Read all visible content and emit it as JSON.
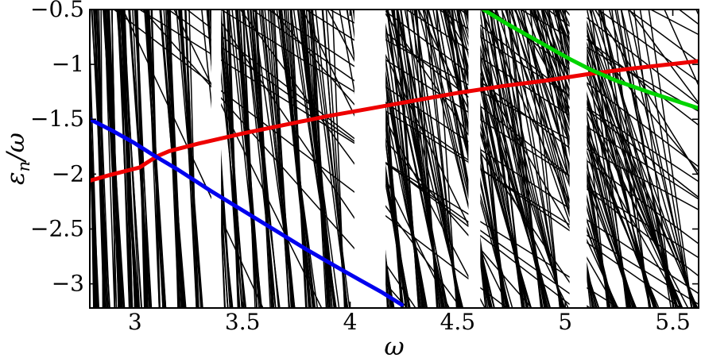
{
  "figure": {
    "background_color": "#ffffff",
    "frame_color": "#000000"
  },
  "chart_data": {
    "type": "line",
    "title": "",
    "xlabel": "ω",
    "ylabel": "εn/ω",
    "ylabel_parts": {
      "base": "ε",
      "sub": "n",
      "rest": "/ω"
    },
    "xlim": [
      2.79,
      5.62
    ],
    "ylim": [
      -3.22,
      -0.5
    ],
    "x_ticks": [
      3,
      3.5,
      4,
      4.5,
      5,
      5.5
    ],
    "x_tick_labels": [
      "3",
      "3.5",
      "4",
      "4.5",
      "5",
      "5.5"
    ],
    "y_ticks": [
      -0.5,
      -1,
      -1.5,
      -2,
      -2.5,
      -3
    ],
    "y_tick_labels": [
      "−0.5",
      "−1",
      "−1.5",
      "−2",
      "−2.5",
      "−3"
    ],
    "grid": false,
    "legend": "none",
    "series": [
      {
        "name": "red-branch",
        "color": "#ee0000",
        "width": 5,
        "points": [
          [
            2.79,
            -2.06
          ],
          [
            2.88,
            -2.01
          ],
          [
            2.96,
            -1.97
          ],
          [
            3.02,
            -1.94
          ],
          [
            3.06,
            -1.89
          ],
          [
            3.1,
            -1.84
          ],
          [
            3.16,
            -1.79
          ],
          [
            3.3,
            -1.72
          ],
          [
            3.5,
            -1.63
          ],
          [
            3.7,
            -1.55
          ],
          [
            3.9,
            -1.47
          ],
          [
            4.1,
            -1.4
          ],
          [
            4.3,
            -1.33
          ],
          [
            4.5,
            -1.26
          ],
          [
            4.7,
            -1.2
          ],
          [
            4.9,
            -1.15
          ],
          [
            5.1,
            -1.09
          ],
          [
            5.3,
            -1.04
          ],
          [
            5.62,
            -0.97
          ]
        ]
      },
      {
        "name": "blue-branch",
        "color": "#0000ee",
        "width": 5,
        "points": [
          [
            2.79,
            -1.5
          ],
          [
            2.9,
            -1.61
          ],
          [
            3.0,
            -1.72
          ],
          [
            3.08,
            -1.82
          ],
          [
            3.2,
            -1.96
          ],
          [
            3.35,
            -2.15
          ],
          [
            3.5,
            -2.33
          ],
          [
            3.65,
            -2.51
          ],
          [
            3.8,
            -2.69
          ],
          [
            3.95,
            -2.86
          ],
          [
            4.05,
            -2.97
          ],
          [
            4.15,
            -3.08
          ],
          [
            4.24,
            -3.19
          ]
        ]
      },
      {
        "name": "green-branch",
        "color": "#00d400",
        "width": 5,
        "points": [
          [
            4.62,
            -0.5
          ],
          [
            4.72,
            -0.62
          ],
          [
            4.82,
            -0.73
          ],
          [
            4.92,
            -0.84
          ],
          [
            5.02,
            -0.95
          ],
          [
            5.12,
            -1.05
          ],
          [
            5.24,
            -1.15
          ],
          [
            5.4,
            -1.26
          ],
          [
            5.62,
            -1.4
          ]
        ]
      }
    ],
    "background_spectrum": {
      "color": "#000000",
      "line_width": 1.5,
      "seed": 11,
      "clusters": [
        {
          "omega": 2.82,
          "width": 0.025,
          "count": 10,
          "lean_min": 6,
          "lean_max": 18
        },
        {
          "omega": 2.865,
          "width": 0.03,
          "count": 12,
          "lean_min": 6,
          "lean_max": 20
        },
        {
          "omega": 2.93,
          "width": 0.045,
          "count": 16,
          "lean_min": 8,
          "lean_max": 24
        },
        {
          "omega": 3.0,
          "width": 0.05,
          "count": 20,
          "lean_min": 8,
          "lean_max": 26
        },
        {
          "omega": 3.06,
          "width": 0.03,
          "count": 12,
          "lean_min": 10,
          "lean_max": 26
        },
        {
          "omega": 3.13,
          "width": 0.035,
          "count": 10,
          "lean_min": 10,
          "lean_max": 28
        },
        {
          "omega": 3.22,
          "width": 0.04,
          "count": 12,
          "lean_min": 12,
          "lean_max": 30
        },
        {
          "omega": 3.3,
          "width": 0.035,
          "count": 10,
          "lean_min": 12,
          "lean_max": 32
        },
        {
          "omega": 3.435,
          "width": 0.03,
          "count": 9,
          "lean_min": 14,
          "lean_max": 34
        },
        {
          "omega": 3.5,
          "width": 0.04,
          "count": 11,
          "lean_min": 14,
          "lean_max": 36
        },
        {
          "omega": 3.575,
          "width": 0.035,
          "count": 10,
          "lean_min": 16,
          "lean_max": 40
        },
        {
          "omega": 3.65,
          "width": 0.04,
          "count": 11,
          "lean_min": 16,
          "lean_max": 44
        },
        {
          "omega": 3.73,
          "width": 0.035,
          "count": 10,
          "lean_min": 18,
          "lean_max": 48
        },
        {
          "omega": 3.82,
          "width": 0.045,
          "count": 13,
          "lean_min": 18,
          "lean_max": 52
        },
        {
          "omega": 3.92,
          "width": 0.05,
          "count": 16,
          "lean_min": 20,
          "lean_max": 56
        },
        {
          "omega": 3.985,
          "width": 0.02,
          "count": 7,
          "lean_min": 20,
          "lean_max": 50
        },
        {
          "omega": 4.19,
          "width": 0.03,
          "count": 10,
          "lean_min": 24,
          "lean_max": 64
        },
        {
          "omega": 4.26,
          "width": 0.04,
          "count": 12,
          "lean_min": 24,
          "lean_max": 70
        },
        {
          "omega": 4.34,
          "width": 0.04,
          "count": 12,
          "lean_min": 28,
          "lean_max": 76
        },
        {
          "omega": 4.43,
          "width": 0.045,
          "count": 14,
          "lean_min": 28,
          "lean_max": 84
        },
        {
          "omega": 4.51,
          "width": 0.03,
          "count": 10,
          "lean_min": 30,
          "lean_max": 90
        },
        {
          "omega": 4.65,
          "width": 0.04,
          "count": 11,
          "lean_min": 34,
          "lean_max": 96
        },
        {
          "omega": 4.73,
          "width": 0.04,
          "count": 12,
          "lean_min": 34,
          "lean_max": 104
        },
        {
          "omega": 4.82,
          "width": 0.045,
          "count": 13,
          "lean_min": 38,
          "lean_max": 112
        },
        {
          "omega": 4.91,
          "width": 0.045,
          "count": 14,
          "lean_min": 38,
          "lean_max": 120
        },
        {
          "omega": 4.985,
          "width": 0.025,
          "count": 9,
          "lean_min": 40,
          "lean_max": 120
        },
        {
          "omega": 5.14,
          "width": 0.035,
          "count": 10,
          "lean_min": 44,
          "lean_max": 130
        },
        {
          "omega": 5.22,
          "width": 0.04,
          "count": 12,
          "lean_min": 44,
          "lean_max": 140
        },
        {
          "omega": 5.31,
          "width": 0.045,
          "count": 13,
          "lean_min": 48,
          "lean_max": 150
        },
        {
          "omega": 5.41,
          "width": 0.045,
          "count": 13,
          "lean_min": 48,
          "lean_max": 160
        },
        {
          "omega": 5.52,
          "width": 0.05,
          "count": 14,
          "lean_min": 52,
          "lean_max": 170
        },
        {
          "omega": 5.6,
          "width": 0.03,
          "count": 9,
          "lean_min": 52,
          "lean_max": 170
        }
      ],
      "diagonals": {
        "count": 22,
        "omega_top_start": 2.88,
        "omega_top_end": 5.55,
        "slope_min": -1.55,
        "slope_max": -1.0
      },
      "steep_diagonals": {
        "count": 20,
        "omega_top_start": 2.92,
        "omega_top_end": 5.58,
        "slope_min": -4.5,
        "slope_max": -2.2
      },
      "gaps": [
        [
          3.355,
          3.4
        ],
        [
          4.02,
          4.165
        ],
        [
          4.55,
          4.605
        ],
        [
          5.02,
          5.1
        ]
      ]
    }
  }
}
